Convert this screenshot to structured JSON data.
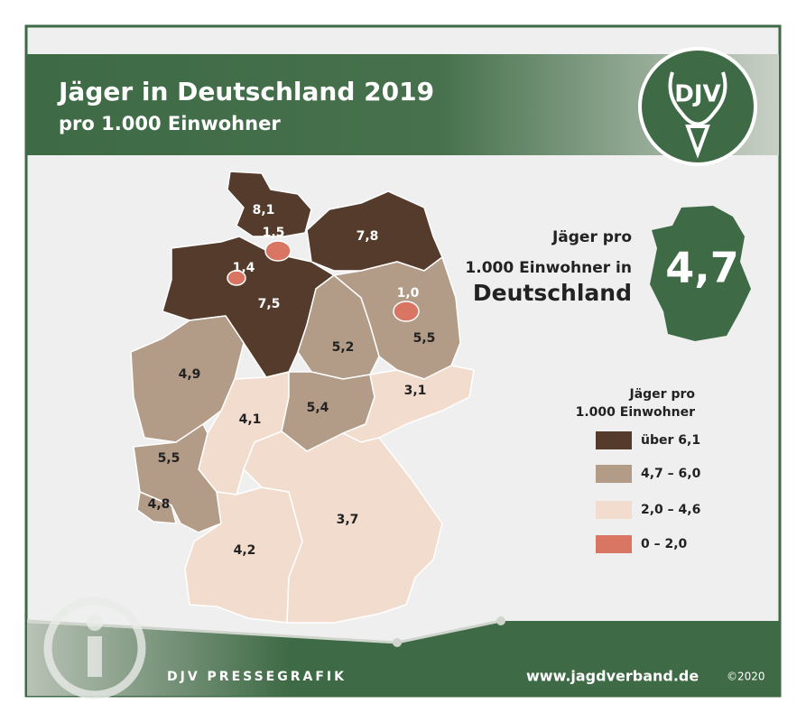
{
  "header": {
    "title": "Jäger in Deutschland 2019",
    "subtitle": "pro 1.000 Einwohner"
  },
  "logo": {
    "text": "DJV"
  },
  "summary": {
    "lines": [
      "Jäger pro",
      "1.000 Einwohner in",
      "Deutschland"
    ],
    "value": "4,7"
  },
  "legend": {
    "title": [
      "Jäger pro",
      "1.000 Einwohner"
    ],
    "items": [
      {
        "label": "über 6,1",
        "color": "#553b2c"
      },
      {
        "label": "4,7 – 6,0",
        "color": "#b39c87"
      },
      {
        "label": "2,0 – 4,6",
        "color": "#f2dccd"
      },
      {
        "label": "0 – 2,0",
        "color": "#d87563"
      }
    ]
  },
  "map": {
    "regions": [
      {
        "label": "8,1"
      },
      {
        "label": "7,8"
      },
      {
        "label": "7,5"
      },
      {
        "label": "1,5"
      },
      {
        "label": "1,4"
      },
      {
        "label": "5,5"
      },
      {
        "label": "1,0"
      },
      {
        "label": "5,2"
      },
      {
        "label": "4,9"
      },
      {
        "label": "4,1"
      },
      {
        "label": "5,4"
      },
      {
        "label": "3,1"
      },
      {
        "label": "5,5"
      },
      {
        "label": "4,8"
      },
      {
        "label": "4,2"
      },
      {
        "label": "3,7"
      }
    ]
  },
  "footer": {
    "left": "DJV PRESSEGRAFIK",
    "url": "www.jagdverband.de",
    "copyright": "©2020"
  }
}
